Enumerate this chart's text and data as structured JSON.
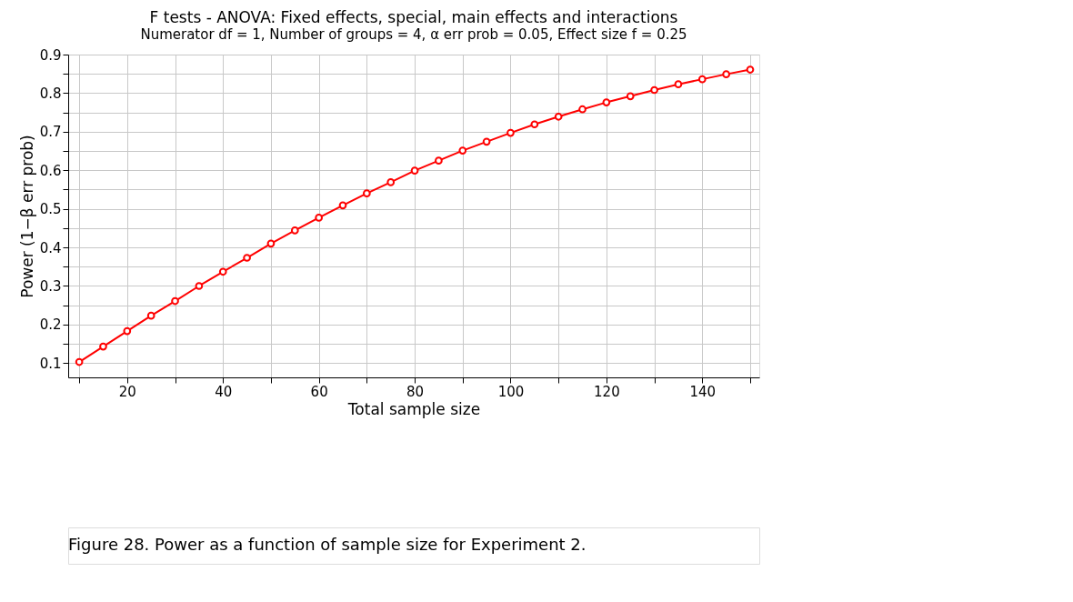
{
  "chart_data": {
    "type": "line",
    "title": "F tests - ANOVA: Fixed effects, special, main effects and interactions",
    "subtitle": "Numerator df = 1, Number of groups = 4, α err prob = 0.05, Effect size f = 0.25",
    "xlabel": "Total sample size",
    "ylabel": "Power (1−β err prob)",
    "x": [
      10,
      15,
      20,
      25,
      30,
      35,
      40,
      45,
      50,
      55,
      60,
      65,
      70,
      75,
      80,
      85,
      90,
      95,
      100,
      105,
      110,
      115,
      120,
      125,
      130,
      135,
      140,
      145,
      150
    ],
    "series": [
      {
        "color": "#ff0000",
        "values": [
          0.103,
          0.143,
          0.183,
          0.223,
          0.261,
          0.3,
          0.337,
          0.373,
          0.41,
          0.444,
          0.477,
          0.509,
          0.54,
          0.569,
          0.599,
          0.625,
          0.651,
          0.674,
          0.697,
          0.719,
          0.739,
          0.758,
          0.776,
          0.792,
          0.808,
          0.823,
          0.836,
          0.849,
          0.861
        ]
      }
    ],
    "xlim": [
      7.7,
      151.9
    ],
    "ylim": [
      0.063,
      0.9
    ],
    "xticks": [
      {
        "value": 10,
        "label": null
      },
      20,
      {
        "value": 30,
        "label": null
      },
      40,
      {
        "value": 50,
        "label": null
      },
      60,
      {
        "value": 70,
        "label": null
      },
      80,
      {
        "value": 90,
        "label": null
      },
      100,
      {
        "value": 110,
        "label": null
      },
      120,
      {
        "value": 130,
        "label": null
      },
      140,
      {
        "value": 150,
        "label": null
      }
    ],
    "yticks": [
      0.1,
      {
        "value": 0.15,
        "label": null
      },
      0.2,
      {
        "value": 0.25,
        "label": null
      },
      0.3,
      {
        "value": 0.35,
        "label": null
      },
      0.4,
      {
        "value": 0.45,
        "label": null
      },
      0.5,
      {
        "value": 0.55,
        "label": null
      },
      0.6,
      {
        "value": 0.65,
        "label": null
      },
      0.7,
      {
        "value": 0.75,
        "label": null
      },
      0.8,
      {
        "value": 0.85,
        "label": null
      },
      0.9
    ],
    "grid": true,
    "marker": "circle",
    "line_style": "solid",
    "annotations": [
      "Figure 28. Power as a function of sample size for Experiment 2."
    ]
  }
}
